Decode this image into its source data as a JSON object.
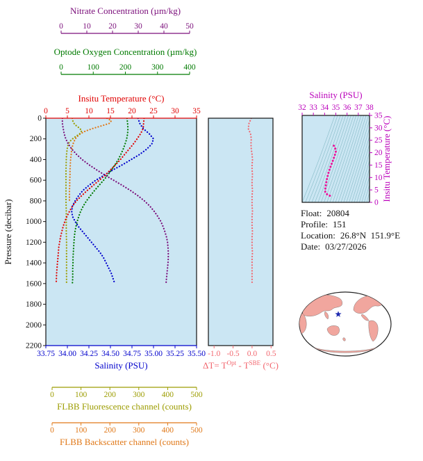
{
  "colors": {
    "panel_bg": "#cbe6f3",
    "frame": "#111111",
    "contour": "#8fc0cc",
    "land": "#f1a69e",
    "ocean": "#ffffff",
    "star": "#1f2bb0"
  },
  "info": {
    "lines": [
      {
        "label": "Float:",
        "value": "20804"
      },
      {
        "label": "Profile:",
        "value": "151"
      },
      {
        "label": "Location:",
        "value": "26.8°N  151.9°E"
      },
      {
        "label": "Date:",
        "value": "03/27/2026"
      }
    ]
  },
  "chart_data": [
    {
      "id": "main-profiles",
      "type": "line",
      "pressure_axis": {
        "label": "Pressure (decibar)",
        "min": 0,
        "max": 2200,
        "ticks": [
          0,
          200,
          400,
          600,
          800,
          1000,
          1200,
          1400,
          1600,
          1800,
          2000,
          2200
        ]
      },
      "series": [
        {
          "id": "nitrate",
          "label": "Nitrate Concentration (µm/kg)",
          "color": "#7a0d7a",
          "min": 0,
          "max": 50,
          "ticks": [
            0,
            10,
            20,
            30,
            40,
            50
          ],
          "points": [
            [
              0,
              0.5
            ],
            [
              50,
              0.5
            ],
            [
              100,
              0.8
            ],
            [
              150,
              1.2
            ],
            [
              200,
              1.8
            ],
            [
              250,
              2.8
            ],
            [
              300,
              4.2
            ],
            [
              350,
              6.0
            ],
            [
              400,
              8.2
            ],
            [
              450,
              10.8
            ],
            [
              500,
              13.8
            ],
            [
              550,
              17.0
            ],
            [
              600,
              20.4
            ],
            [
              650,
              23.8
            ],
            [
              700,
              27.0
            ],
            [
              750,
              29.9
            ],
            [
              800,
              32.4
            ],
            [
              850,
              34.5
            ],
            [
              900,
              36.2
            ],
            [
              950,
              37.6
            ],
            [
              1000,
              38.8
            ],
            [
              1050,
              39.7
            ],
            [
              1100,
              40.4
            ],
            [
              1150,
              41.0
            ],
            [
              1200,
              41.4
            ],
            [
              1250,
              41.6
            ],
            [
              1300,
              41.7
            ],
            [
              1350,
              41.7
            ],
            [
              1400,
              41.6
            ],
            [
              1450,
              41.4
            ],
            [
              1500,
              41.2
            ],
            [
              1550,
              41.0
            ],
            [
              1600,
              40.8
            ]
          ]
        },
        {
          "id": "oxygen",
          "label": "Optode Oxygen Concentration (µm/kg)",
          "color": "#007a00",
          "min": 0,
          "max": 400,
          "ticks": [
            0,
            100,
            200,
            300,
            400
          ],
          "points": [
            [
              0,
              205
            ],
            [
              50,
              207
            ],
            [
              100,
              208
            ],
            [
              150,
              207
            ],
            [
              200,
              204
            ],
            [
              250,
              199
            ],
            [
              300,
              193
            ],
            [
              350,
              186
            ],
            [
              400,
              178
            ],
            [
              450,
              168
            ],
            [
              500,
              157
            ],
            [
              550,
              145
            ],
            [
              600,
              132
            ],
            [
              650,
              118
            ],
            [
              700,
              104
            ],
            [
              750,
              91
            ],
            [
              800,
              79
            ],
            [
              850,
              69
            ],
            [
              900,
              61
            ],
            [
              950,
              55
            ],
            [
              1000,
              50
            ],
            [
              1050,
              46
            ],
            [
              1100,
              43
            ],
            [
              1150,
              41
            ],
            [
              1200,
              40
            ],
            [
              1250,
              39
            ],
            [
              1300,
              38
            ],
            [
              1350,
              37
            ],
            [
              1400,
              37
            ],
            [
              1450,
              36
            ],
            [
              1500,
              36
            ],
            [
              1550,
              36
            ],
            [
              1600,
              35
            ]
          ]
        },
        {
          "id": "temperature",
          "label": "Insitu Temperature (°C)",
          "color": "#e00000",
          "min": 0,
          "max": 35,
          "ticks": [
            0,
            5,
            10,
            15,
            20,
            25,
            30,
            35
          ],
          "points": [
            [
              0,
              22.8
            ],
            [
              50,
              22.7
            ],
            [
              100,
              22.6
            ],
            [
              150,
              22.0
            ],
            [
              200,
              21.2
            ],
            [
              250,
              20.3
            ],
            [
              300,
              19.3
            ],
            [
              350,
              18.3
            ],
            [
              400,
              17.3
            ],
            [
              450,
              16.2
            ],
            [
              500,
              15.0
            ],
            [
              550,
              13.8
            ],
            [
              600,
              12.4
            ],
            [
              650,
              11.0
            ],
            [
              700,
              9.6
            ],
            [
              750,
              8.3
            ],
            [
              800,
              7.1
            ],
            [
              850,
              6.2
            ],
            [
              900,
              5.5
            ],
            [
              950,
              4.9
            ],
            [
              1000,
              4.4
            ],
            [
              1050,
              4.0
            ],
            [
              1100,
              3.7
            ],
            [
              1150,
              3.4
            ],
            [
              1200,
              3.2
            ],
            [
              1250,
              3.0
            ],
            [
              1300,
              2.9
            ],
            [
              1350,
              2.8
            ],
            [
              1400,
              2.7
            ],
            [
              1450,
              2.6
            ],
            [
              1500,
              2.5
            ],
            [
              1550,
              2.45
            ],
            [
              1600,
              2.4
            ]
          ]
        },
        {
          "id": "salinity",
          "label": "Salinity (PSU)",
          "color": "#0000cc",
          "min": 33.75,
          "max": 35.5,
          "ticks": [
            "33.75",
            "34.00",
            "34.25",
            "34.50",
            "34.75",
            "35.00",
            "35.25",
            "35.50"
          ],
          "points": [
            [
              0,
              34.82
            ],
            [
              50,
              34.84
            ],
            [
              100,
              34.88
            ],
            [
              150,
              34.95
            ],
            [
              200,
              35.0
            ],
            [
              250,
              34.98
            ],
            [
              300,
              34.92
            ],
            [
              350,
              34.84
            ],
            [
              400,
              34.74
            ],
            [
              450,
              34.64
            ],
            [
              500,
              34.53
            ],
            [
              550,
              34.43
            ],
            [
              600,
              34.33
            ],
            [
              650,
              34.25
            ],
            [
              700,
              34.18
            ],
            [
              750,
              34.13
            ],
            [
              800,
              34.09
            ],
            [
              850,
              34.06
            ],
            [
              900,
              34.05
            ],
            [
              950,
              34.06
            ],
            [
              1000,
              34.09
            ],
            [
              1050,
              34.13
            ],
            [
              1100,
              34.18
            ],
            [
              1150,
              34.23
            ],
            [
              1200,
              34.28
            ],
            [
              1250,
              34.33
            ],
            [
              1300,
              34.38
            ],
            [
              1350,
              34.42
            ],
            [
              1400,
              34.45
            ],
            [
              1450,
              34.48
            ],
            [
              1500,
              34.51
            ],
            [
              1550,
              34.53
            ],
            [
              1600,
              34.55
            ]
          ]
        },
        {
          "id": "fluorescence",
          "label": "FLBB Fluorescence channel (counts)",
          "color": "#9c9c00",
          "min": 0,
          "max": 500,
          "ticks": [
            0,
            100,
            200,
            300,
            400,
            500
          ],
          "points": [
            [
              0,
              70
            ],
            [
              30,
              72
            ],
            [
              60,
              78
            ],
            [
              90,
              92
            ],
            [
              120,
              103
            ],
            [
              150,
              96
            ],
            [
              180,
              80
            ],
            [
              210,
              66
            ],
            [
              240,
              58
            ],
            [
              270,
              54
            ],
            [
              300,
              52
            ],
            [
              350,
              50
            ],
            [
              400,
              49
            ],
            [
              500,
              48
            ],
            [
              600,
              48
            ],
            [
              700,
              48
            ],
            [
              800,
              48
            ],
            [
              900,
              49
            ],
            [
              1000,
              49
            ],
            [
              1100,
              49
            ],
            [
              1200,
              50
            ],
            [
              1300,
              50
            ],
            [
              1400,
              50
            ],
            [
              1500,
              50
            ],
            [
              1600,
              50
            ]
          ]
        },
        {
          "id": "backscatter",
          "label": "FLBB Backscatter channel (counts)",
          "color": "#e07818",
          "min": 0,
          "max": 500,
          "ticks": [
            0,
            100,
            200,
            300,
            400,
            500
          ],
          "points": [
            [
              0,
              190
            ],
            [
              25,
              205
            ],
            [
              50,
              198
            ],
            [
              75,
              170
            ],
            [
              100,
              140
            ],
            [
              125,
              115
            ],
            [
              150,
              98
            ],
            [
              175,
              88
            ],
            [
              200,
              80
            ],
            [
              250,
              72
            ],
            [
              300,
              68
            ],
            [
              350,
              66
            ],
            [
              400,
              64
            ],
            [
              450,
              63
            ],
            [
              500,
              62
            ],
            [
              550,
              62
            ],
            [
              600,
              61
            ],
            [
              650,
              61
            ],
            [
              700,
              60
            ],
            [
              750,
              60
            ],
            [
              800,
              60
            ]
          ]
        }
      ]
    },
    {
      "id": "delta-t",
      "type": "line",
      "color": "#f2666e",
      "axis": {
        "label_parts": [
          {
            "text": "ΔT= T"
          },
          {
            "text": "Opt",
            "sup": true
          },
          {
            "text": " - T"
          },
          {
            "text": "SBE",
            "sup": true
          },
          {
            "text": " (°C)"
          }
        ],
        "min": -1.15,
        "max": 0.55,
        "ticks": [
          "-1.0",
          "-0.5",
          "0.0",
          "0.5"
        ]
      },
      "points": [
        [
          0,
          -0.02
        ],
        [
          50,
          -0.08
        ],
        [
          100,
          -0.1
        ],
        [
          150,
          -0.04
        ],
        [
          200,
          -0.02
        ],
        [
          250,
          -0.03
        ],
        [
          300,
          -0.02
        ],
        [
          350,
          0.0
        ],
        [
          400,
          0.01
        ],
        [
          450,
          0.0
        ],
        [
          500,
          0.0
        ],
        [
          550,
          0.01
        ],
        [
          600,
          0.0
        ],
        [
          650,
          0.0
        ],
        [
          700,
          0.01
        ],
        [
          750,
          0.0
        ],
        [
          800,
          0.0
        ],
        [
          850,
          0.0
        ],
        [
          900,
          0.01
        ],
        [
          950,
          0.0
        ],
        [
          1000,
          0.0
        ],
        [
          1050,
          0.0
        ],
        [
          1100,
          0.01
        ],
        [
          1150,
          0.0
        ],
        [
          1200,
          0.0
        ],
        [
          1250,
          0.0
        ],
        [
          1300,
          0.01
        ],
        [
          1350,
          0.0
        ],
        [
          1400,
          0.0
        ],
        [
          1450,
          0.0
        ],
        [
          1500,
          0.0
        ],
        [
          1550,
          0.0
        ],
        [
          1600,
          0.0
        ]
      ]
    },
    {
      "id": "ts-diagram",
      "type": "scatter",
      "color": "#ee1199",
      "label_color": "#bb00bb",
      "x_axis": {
        "label": "Salinity (PSU)",
        "min": 32,
        "max": 38,
        "ticks": [
          32,
          33,
          34,
          35,
          36,
          37,
          38
        ]
      },
      "y_axis": {
        "label": "Insitu Temperature (°C)",
        "min": 0,
        "max": 35,
        "ticks": [
          0,
          5,
          10,
          15,
          20,
          25,
          30,
          35
        ]
      },
      "points": [
        [
          34.82,
          22.8
        ],
        [
          34.85,
          22.6
        ],
        [
          34.9,
          22.2
        ],
        [
          34.96,
          21.5
        ],
        [
          35.0,
          21.0
        ],
        [
          35.0,
          20.5
        ],
        [
          34.97,
          19.8
        ],
        [
          34.9,
          18.9
        ],
        [
          34.8,
          17.6
        ],
        [
          34.7,
          16.4
        ],
        [
          34.57,
          14.8
        ],
        [
          34.44,
          13.2
        ],
        [
          34.33,
          11.7
        ],
        [
          34.24,
          10.0
        ],
        [
          34.17,
          8.6
        ],
        [
          34.12,
          7.2
        ],
        [
          34.08,
          6.0
        ],
        [
          34.05,
          5.0
        ],
        [
          34.05,
          4.4
        ],
        [
          34.07,
          4.0
        ],
        [
          34.1,
          3.7
        ],
        [
          34.15,
          3.5
        ],
        [
          34.2,
          3.3
        ],
        [
          34.27,
          3.1
        ],
        [
          34.33,
          3.0
        ],
        [
          34.4,
          2.8
        ],
        [
          34.46,
          2.7
        ],
        [
          34.51,
          2.5
        ],
        [
          34.55,
          2.4
        ]
      ]
    }
  ],
  "map": {
    "marker": "float-location-star"
  }
}
